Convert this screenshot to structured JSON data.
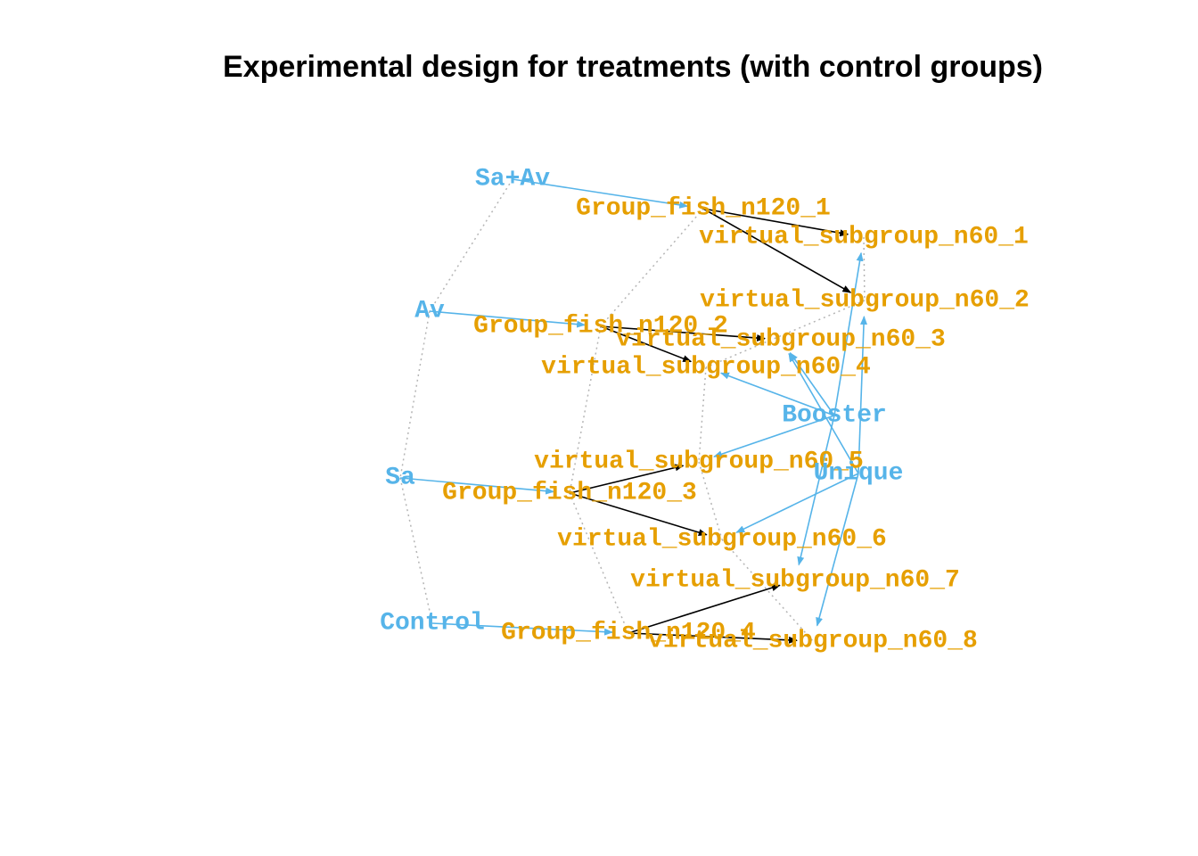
{
  "title": "Experimental design for treatments (with control groups)",
  "colors": {
    "treatment_node": "#56B4E9",
    "group_node": "#E69F00",
    "treatment_edge": "#56B4E9",
    "group_edge": "#000000",
    "link_line": "#b5b5b5"
  },
  "treatments": [
    {
      "id": "sa_av",
      "label": "Sa+Av"
    },
    {
      "id": "av",
      "label": "Av"
    },
    {
      "id": "sa",
      "label": "Sa"
    },
    {
      "id": "control",
      "label": "Control"
    }
  ],
  "groups": [
    {
      "id": "g1",
      "label": "Group_fish_n120_1"
    },
    {
      "id": "g2",
      "label": "Group_fish_n120_2"
    },
    {
      "id": "g3",
      "label": "Group_fish_n120_3"
    },
    {
      "id": "g4",
      "label": "Group_fish_n120_4"
    }
  ],
  "subgroups": [
    {
      "id": "s1",
      "label": "virtual_subgroup_n60_1"
    },
    {
      "id": "s2",
      "label": "virtual_subgroup_n60_2"
    },
    {
      "id": "s3",
      "label": "virtual_subgroup_n60_3"
    },
    {
      "id": "s4",
      "label": "virtual_subgroup_n60_4"
    },
    {
      "id": "s5",
      "label": "virtual_subgroup_n60_5"
    },
    {
      "id": "s6",
      "label": "virtual_subgroup_n60_6"
    },
    {
      "id": "s7",
      "label": "virtual_subgroup_n60_7"
    },
    {
      "id": "s8",
      "label": "virtual_subgroup_n60_8"
    }
  ],
  "modes": [
    {
      "id": "booster",
      "label": "Booster"
    },
    {
      "id": "unique",
      "label": "Unique"
    }
  ],
  "edges": [
    {
      "from": "sa_av",
      "to": "g1",
      "kind": "treatment"
    },
    {
      "from": "av",
      "to": "g2",
      "kind": "treatment"
    },
    {
      "from": "sa",
      "to": "g3",
      "kind": "treatment"
    },
    {
      "from": "control",
      "to": "g4",
      "kind": "treatment"
    },
    {
      "from": "g1",
      "to": "s1",
      "kind": "group"
    },
    {
      "from": "g1",
      "to": "s2",
      "kind": "group"
    },
    {
      "from": "g2",
      "to": "s3",
      "kind": "group"
    },
    {
      "from": "g2",
      "to": "s4",
      "kind": "group"
    },
    {
      "from": "g3",
      "to": "s5",
      "kind": "group"
    },
    {
      "from": "g3",
      "to": "s6",
      "kind": "group"
    },
    {
      "from": "g4",
      "to": "s7",
      "kind": "group"
    },
    {
      "from": "g4",
      "to": "s8",
      "kind": "group"
    },
    {
      "from": "booster",
      "to": "s1",
      "kind": "treatment"
    },
    {
      "from": "booster",
      "to": "s3",
      "kind": "treatment"
    },
    {
      "from": "booster",
      "to": "s4",
      "kind": "treatment"
    },
    {
      "from": "booster",
      "to": "s5",
      "kind": "treatment"
    },
    {
      "from": "booster",
      "to": "s7",
      "kind": "treatment"
    },
    {
      "from": "unique",
      "to": "s2",
      "kind": "treatment"
    },
    {
      "from": "unique",
      "to": "s3",
      "kind": "treatment"
    },
    {
      "from": "unique",
      "to": "s6",
      "kind": "treatment"
    },
    {
      "from": "unique",
      "to": "s8",
      "kind": "treatment"
    }
  ],
  "links": [
    [
      "sa_av",
      "av"
    ],
    [
      "av",
      "sa"
    ],
    [
      "sa",
      "control"
    ],
    [
      "g1",
      "g2"
    ],
    [
      "g2",
      "g3"
    ],
    [
      "g3",
      "g4"
    ],
    [
      "s1",
      "s2"
    ],
    [
      "s2",
      "s4"
    ],
    [
      "s4",
      "s5"
    ],
    [
      "s5",
      "s6"
    ],
    [
      "s6",
      "s8"
    ]
  ]
}
